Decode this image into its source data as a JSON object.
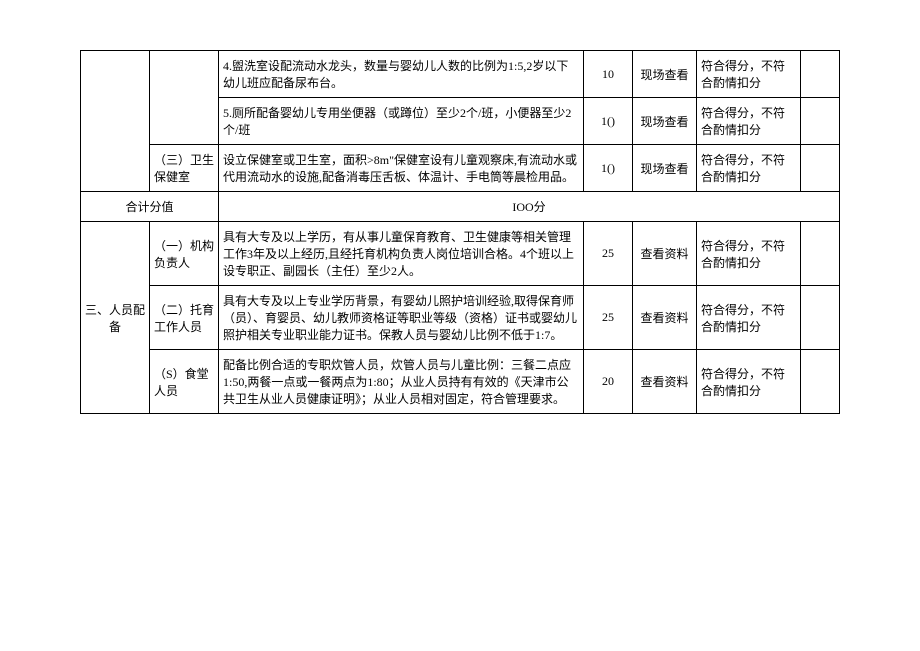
{
  "rows": {
    "r1_desc": "4.盥洗室设配流动水龙头，数量与婴幼儿人数的比例为1:5,2岁以下幼儿班应配备尿布台。",
    "r1_score": "10",
    "r1_method": "现场查看",
    "r1_eval": "符合得分，不符合酌情扣分",
    "r2_desc": "5.厕所配备婴幼儿专用坐便器（或蹲位）至少2个/班，小便器至少2个/班",
    "r2_score": "1()",
    "r2_method": "现场查看",
    "r2_eval": "符合得分，不符合酌情扣分",
    "r3_sub": "（三）卫生保健室",
    "r3_desc": "设立保健室或卫生室，面积>8m\"保健室设有儿童观察床,有流动水或代用流动水的设施,配备消毒压舌板、体温计、手电筒等晨检用品。",
    "r3_score": "1()",
    "r3_method": "现场查看",
    "r3_eval": "符合得分，不符合酌情扣分",
    "total_label": "合计分值",
    "total_value": "IOO分",
    "s3_cat": "三、人员配备",
    "p1_sub": "（一）机构负责人",
    "p1_desc": "具有大专及以上学历，有从事儿童保育教育、卫生健康等相关管理工作3年及以上经历,且经托育机构负责人岗位培训合格。4个班以上设专职正、副园长（主任）至少2人。",
    "p1_score": "25",
    "p1_method": "查看资料",
    "p1_eval": "符合得分，不符合酌情扣分",
    "p2_sub": "（二）托育工作人员",
    "p2_desc": "具有大专及以上专业学历背景，有婴幼儿照护培训经验,取得保育师（员）、育婴员、幼儿教师资格证等职业等级（资格）证书或婴幼儿照护相关专业职业能力证书。保教人员与婴幼儿比例不低于1:7。",
    "p2_score": "25",
    "p2_method": "查看资料",
    "p2_eval": "符合得分，不符合酌情扣分",
    "p3_sub": "（S）食堂人员",
    "p3_desc": "配备比例合适的专职炊管人员，炊管人员与儿童比例：三餐二点应1:50,两餐一点或一餐两点为1:80；从业人员持有有效的《天津市公共卫生从业人员健康证明》；从业人员相对固定，符合管理要求。",
    "p3_score": "20",
    "p3_method": "查看资料",
    "p3_eval": "符合得分，不符合酌情扣分"
  }
}
